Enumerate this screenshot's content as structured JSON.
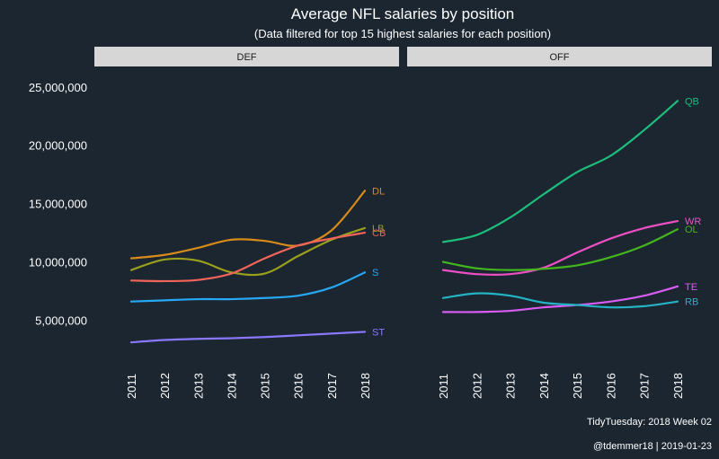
{
  "chart_data": {
    "type": "line",
    "title": "Average NFL salaries by position",
    "subtitle": "(Data filtered for top 15 highest salaries for each position)",
    "x": [
      2011,
      2012,
      2013,
      2014,
      2015,
      2016,
      2017,
      2018
    ],
    "x_tick_labels": [
      "2011",
      "2012",
      "2013",
      "2014",
      "2015",
      "2016",
      "2017",
      "2018"
    ],
    "ylim": [
      1800000,
      26600000
    ],
    "y_ticks": [
      5000000,
      10000000,
      15000000,
      20000000,
      25000000
    ],
    "y_tick_labels": [
      "5,000,000",
      "10,000,000",
      "15,000,000",
      "20,000,000",
      "25,000,000"
    ],
    "grid": false,
    "legend": "none",
    "facets": [
      {
        "strip": "DEF",
        "series": [
          {
            "name": "DL",
            "color": "#d98b1a",
            "values": [
              10300000,
              10600000,
              11200000,
              11900000,
              11800000,
              11400000,
              12700000,
              16100000
            ]
          },
          {
            "name": "LB",
            "color": "#9aa01c",
            "values": [
              9300000,
              10200000,
              10100000,
              9100000,
              9000000,
              10500000,
              11900000,
              12900000
            ]
          },
          {
            "name": "CB",
            "color": "#f0645a",
            "values": [
              8400000,
              8350000,
              8450000,
              9000000,
              10300000,
              11400000,
              12000000,
              12500000
            ]
          },
          {
            "name": "S",
            "color": "#27a8f5",
            "values": [
              6600000,
              6700000,
              6800000,
              6800000,
              6900000,
              7100000,
              7800000,
              9100000
            ]
          },
          {
            "name": "ST",
            "color": "#8c78ff",
            "values": [
              3100000,
              3300000,
              3400000,
              3450000,
              3550000,
              3700000,
              3850000,
              4000000
            ]
          }
        ]
      },
      {
        "strip": "OFF",
        "series": [
          {
            "name": "QB",
            "color": "#1dbd7c",
            "values": [
              11700000,
              12300000,
              13800000,
              15800000,
              17700000,
              19100000,
              21300000,
              23800000
            ]
          },
          {
            "name": "WR",
            "color": "#ee4fc4",
            "values": [
              9300000,
              8950000,
              8950000,
              9500000,
              10800000,
              12000000,
              12900000,
              13500000
            ]
          },
          {
            "name": "OL",
            "color": "#44b61d",
            "values": [
              10000000,
              9450000,
              9300000,
              9400000,
              9700000,
              10400000,
              11400000,
              12800000
            ]
          },
          {
            "name": "TE",
            "color": "#d95cf5",
            "values": [
              5700000,
              5700000,
              5800000,
              6100000,
              6300000,
              6600000,
              7100000,
              7900000
            ]
          },
          {
            "name": "RB",
            "color": "#24b3c4",
            "values": [
              6900000,
              7300000,
              7100000,
              6500000,
              6300000,
              6100000,
              6200000,
              6600000
            ]
          }
        ]
      }
    ]
  },
  "caption": {
    "line1": "TidyTuesday: 2018 Week 02",
    "line2": "@tdemmer18 | 2019-01-23"
  }
}
